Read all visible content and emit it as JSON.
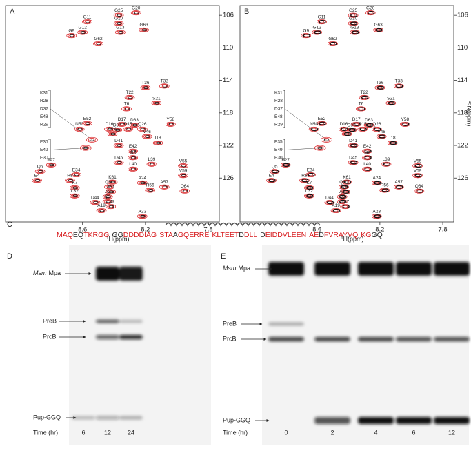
{
  "spectra": {
    "panels": [
      "A",
      "B"
    ],
    "xlabel": "¹H(ppm)",
    "ylabel": "¹⁵N(ppm)",
    "xlim": [
      9.09,
      7.73
    ],
    "ylim": [
      104.8,
      131.4
    ],
    "xticks": [
      8.6,
      8.2,
      7.8
    ],
    "yticks": [
      106,
      110,
      114,
      118,
      122,
      126
    ],
    "peaks": [
      {
        "label": "G25",
        "x": 8.37,
        "y": 106.0
      },
      {
        "label": "G20",
        "x": 8.26,
        "y": 105.7
      },
      {
        "label": "G11",
        "x": 8.57,
        "y": 106.8
      },
      {
        "label": "G10",
        "x": 8.37,
        "y": 107.0
      },
      {
        "label": "G12",
        "x": 8.6,
        "y": 108.1
      },
      {
        "label": "G13",
        "x": 8.36,
        "y": 108.1
      },
      {
        "label": "G63",
        "x": 8.21,
        "y": 107.8
      },
      {
        "label": "G9",
        "x": 8.67,
        "y": 108.5
      },
      {
        "label": "G62",
        "x": 8.5,
        "y": 109.5
      },
      {
        "label": "T36",
        "x": 8.2,
        "y": 114.9
      },
      {
        "label": "T33",
        "x": 8.08,
        "y": 114.7
      },
      {
        "label": "T22",
        "x": 8.3,
        "y": 116.1
      },
      {
        "label": "S21",
        "x": 8.13,
        "y": 116.8
      },
      {
        "label": "T6",
        "x": 8.32,
        "y": 117.5
      },
      {
        "label": "E52",
        "x": 8.57,
        "y": 119.3
      },
      {
        "label": "N50",
        "x": 8.62,
        "y": 120.0
      },
      {
        "label": "D16",
        "x": 8.43,
        "y": 120.0
      },
      {
        "label": "D38",
        "x": 8.38,
        "y": 120.1
      },
      {
        "label": "D14",
        "x": 8.41,
        "y": 120.6
      },
      {
        "label": "D17",
        "x": 8.35,
        "y": 119.4
      },
      {
        "label": "D63",
        "x": 8.27,
        "y": 119.5
      },
      {
        "label": "D15",
        "x": 8.31,
        "y": 120.0
      },
      {
        "label": "Q26",
        "x": 8.22,
        "y": 120.0
      },
      {
        "label": "Y58",
        "x": 8.04,
        "y": 119.4
      },
      {
        "label": "V46",
        "x": 8.19,
        "y": 120.9
      },
      {
        "label": "I18",
        "x": 8.12,
        "y": 121.7
      },
      {
        "label": "E27",
        "x": 8.8,
        "y": 124.4
      },
      {
        "label": "Q5",
        "x": 8.87,
        "y": 125.2
      },
      {
        "label": "D41",
        "x": 8.37,
        "y": 122.0
      },
      {
        "label": "E42",
        "x": 8.28,
        "y": 122.7
      },
      {
        "label": "I43",
        "x": 8.28,
        "y": 123.5
      },
      {
        "label": "D45",
        "x": 8.37,
        "y": 124.1
      },
      {
        "label": "L39",
        "x": 8.16,
        "y": 124.3
      },
      {
        "label": "L40",
        "x": 8.28,
        "y": 124.9
      },
      {
        "label": "V55",
        "x": 7.96,
        "y": 124.5
      },
      {
        "label": "V59",
        "x": 7.96,
        "y": 125.7
      },
      {
        "label": "E4",
        "x": 8.89,
        "y": 126.3
      },
      {
        "label": "E34",
        "x": 8.64,
        "y": 125.6
      },
      {
        "label": "R8",
        "x": 8.68,
        "y": 126.3
      },
      {
        "label": "K7",
        "x": 8.65,
        "y": 127.2
      },
      {
        "label": "K61",
        "x": 8.41,
        "y": 126.5
      },
      {
        "label": "Q60",
        "x": 8.43,
        "y": 127.1
      },
      {
        "label": "A24",
        "x": 8.22,
        "y": 126.6
      },
      {
        "label": "A51",
        "x": 8.42,
        "y": 127.7
      },
      {
        "label": "A2",
        "x": 8.44,
        "y": 128.3
      },
      {
        "label": "L32",
        "x": 8.65,
        "y": 128.2
      },
      {
        "label": "R56",
        "x": 8.17,
        "y": 127.5
      },
      {
        "label": "A57",
        "x": 8.08,
        "y": 127.1
      },
      {
        "label": "Q64",
        "x": 7.95,
        "y": 127.6
      },
      {
        "label": "D44",
        "x": 8.52,
        "y": 129.0
      },
      {
        "label": "Q3",
        "x": 8.44,
        "y": 128.9
      },
      {
        "label": "L47",
        "x": 8.42,
        "y": 129.5
      },
      {
        "label": "A19",
        "x": 8.48,
        "y": 130.0
      },
      {
        "label": "A23",
        "x": 8.22,
        "y": 130.7
      }
    ],
    "groups": [
      {
        "labels": [
          "K31",
          "R28",
          "D37",
          "E48",
          "R29"
        ],
        "x": 8.54,
        "y": 121.3
      },
      {
        "labels": [
          "E35",
          "E49",
          "E30"
        ],
        "x": 8.58,
        "y": 122.3
      }
    ]
  },
  "sequence": {
    "label": "C",
    "groups": [
      [
        {
          "text": "MAQ",
          "color": "#d7191c"
        },
        {
          "text": "EQ",
          "color": "#222222"
        },
        {
          "text": "TKRGG",
          "color": "#d7191c"
        }
      ],
      [
        {
          "text": "GG",
          "color": "#222222"
        },
        {
          "text": "DDDDIAG",
          "color": "#d7191c"
        }
      ],
      [
        {
          "text": "STA",
          "color": "#d7191c"
        },
        {
          "text": "A",
          "color": "#222222"
        },
        {
          "text": "GQERRE",
          "color": "#d7191c"
        }
      ],
      [
        {
          "text": "KLTEET",
          "color": "#d7191c"
        },
        {
          "text": "D",
          "color": "#222222"
        },
        {
          "text": "DLL",
          "color": "#d7191c"
        }
      ],
      [
        {
          "text": "D",
          "color": "#222222"
        },
        {
          "text": "EIDDVLEEN",
          "color": "#d7191c"
        }
      ],
      [
        {
          "text": "AE",
          "color": "#d7191c"
        },
        {
          "text": "D",
          "color": "#222222"
        },
        {
          "text": "FVRAYVQ",
          "color": "#d7191c"
        }
      ],
      [
        {
          "text": "KG",
          "color": "#d7191c"
        },
        {
          "text": "GQ",
          "color": "#222222"
        }
      ]
    ]
  },
  "gels": [
    {
      "label": "D",
      "species": "Msm",
      "protein": "Mpa",
      "bands": [
        "PreB",
        "PrcB",
        "Pup-GGQ"
      ],
      "time_label": "Time (hr)",
      "lanes": [
        6,
        12,
        24
      ]
    },
    {
      "label": "E",
      "species": "Msm",
      "protein": "Mpa",
      "bands": [
        "PreB",
        "PrcB",
        "Pup-GGQ"
      ],
      "time_label": "Time (hr)",
      "lanes": [
        0,
        2,
        4,
        6,
        12
      ]
    }
  ]
}
